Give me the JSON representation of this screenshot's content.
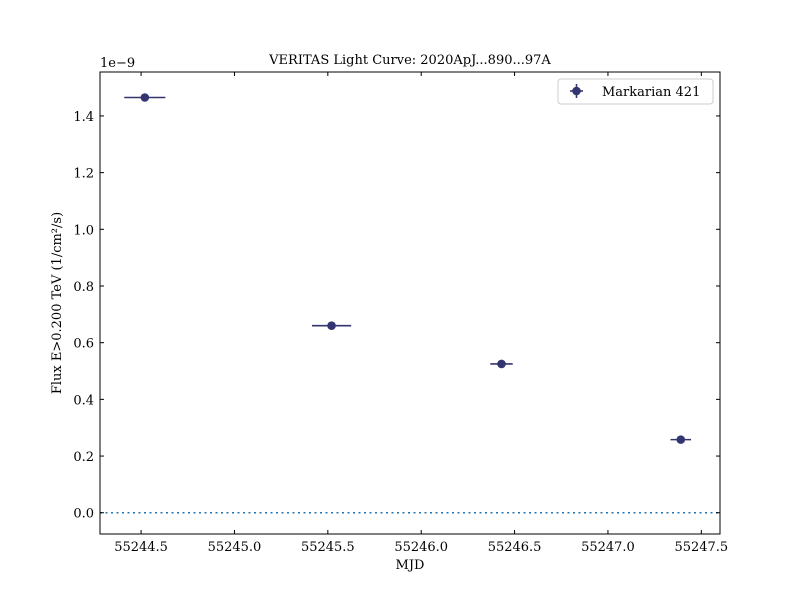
{
  "chart_data": {
    "type": "scatter",
    "title": "VERITAS Light Curve: 2020ApJ...890...97A",
    "xlabel": "MJD",
    "ylabel": "Flux E>0.200 TeV (1/cm²/s)",
    "y_offset_label": "1e−9",
    "xlim": [
      55244.28,
      55247.6
    ],
    "ylim": [
      -0.075,
      1.555
    ],
    "xticks": [
      55244.5,
      55245.0,
      55245.5,
      55246.0,
      55246.5,
      55247.0,
      55247.5
    ],
    "xtick_labels": [
      "55244.5",
      "55245.0",
      "55245.5",
      "55246.0",
      "55246.5",
      "55247.0",
      "55247.5"
    ],
    "yticks": [
      0.0,
      0.2,
      0.4,
      0.6,
      0.8,
      1.0,
      1.2,
      1.4
    ],
    "ytick_labels": [
      "0.0",
      "0.2",
      "0.4",
      "0.6",
      "0.8",
      "1.0",
      "1.2",
      "1.4"
    ],
    "zero_line": 0.0,
    "grid": false,
    "legend_position": "top-right",
    "series": [
      {
        "name": "Markarian 421",
        "color": "#333570",
        "points": [
          {
            "x": 55244.52,
            "y": 1.465,
            "xerr": 0.11,
            "yerr": 0.012
          },
          {
            "x": 55245.52,
            "y": 0.66,
            "xerr": 0.105,
            "yerr": 0.012
          },
          {
            "x": 55246.43,
            "y": 0.525,
            "xerr": 0.06,
            "yerr": 0.008
          },
          {
            "x": 55247.39,
            "y": 0.258,
            "xerr": 0.055,
            "yerr": 0.008
          }
        ]
      }
    ],
    "zero_line_color": "#1f77b4"
  }
}
